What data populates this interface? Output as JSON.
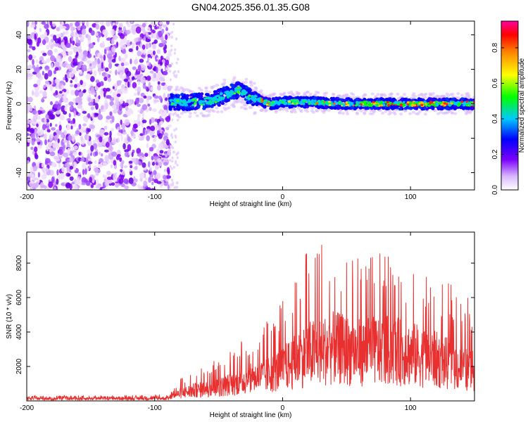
{
  "title": "GN04.2025.356.01.35.G08",
  "chart_data": [
    {
      "type": "heatmap",
      "xlabel": "Height of straight line (km)",
      "ylabel": "Frequency (Hz)",
      "xlim": [
        -200,
        150
      ],
      "ylim": [
        -50,
        48
      ],
      "xticks": [
        -200,
        -100,
        0,
        100
      ],
      "yticks": [
        -40,
        -20,
        0,
        20,
        40
      ],
      "colorbar": {
        "label": "Normalized spectral amplitude",
        "ticks": [
          0.0,
          0.2,
          0.4,
          0.6,
          0.8
        ],
        "range": [
          0,
          0.95
        ]
      },
      "noise_region_km": [
        -200,
        -88
      ],
      "ridge": [
        {
          "x": -88,
          "f": 1
        },
        {
          "x": -70,
          "f": 1
        },
        {
          "x": -55,
          "f": 2
        },
        {
          "x": -45,
          "f": 5
        },
        {
          "x": -35,
          "f": 8
        },
        {
          "x": -25,
          "f": 4
        },
        {
          "x": -10,
          "f": 0
        },
        {
          "x": 0,
          "f": 1
        },
        {
          "x": 20,
          "f": 1
        },
        {
          "x": 50,
          "f": 0
        },
        {
          "x": 80,
          "f": 0
        },
        {
          "x": 110,
          "f": 0
        },
        {
          "x": 150,
          "f": 0
        }
      ]
    },
    {
      "type": "line",
      "xlabel": "Height of straight line (km)",
      "ylabel": "SNR (10 * v/v)",
      "xlim": [
        -200,
        150
      ],
      "ylim": [
        0,
        9800
      ],
      "xticks": [
        -200,
        -100,
        0,
        100
      ],
      "yticks": [
        2000,
        4000,
        6000,
        8000
      ],
      "series": [
        {
          "name": "SNR",
          "color": "#e83030",
          "envelope": [
            {
              "x": -200,
              "mean": 150,
              "max": 300
            },
            {
              "x": -90,
              "mean": 180,
              "max": 350
            },
            {
              "x": -80,
              "mean": 500,
              "max": 1300
            },
            {
              "x": -70,
              "mean": 700,
              "max": 1800
            },
            {
              "x": -50,
              "mean": 900,
              "max": 2500
            },
            {
              "x": -30,
              "mean": 1400,
              "max": 3600
            },
            {
              "x": -10,
              "mean": 1800,
              "max": 4800
            },
            {
              "x": 0,
              "mean": 2200,
              "max": 5800
            },
            {
              "x": 20,
              "mean": 3200,
              "max": 9400
            },
            {
              "x": 40,
              "mean": 3600,
              "max": 9000
            },
            {
              "x": 60,
              "mean": 3300,
              "max": 8800
            },
            {
              "x": 80,
              "mean": 3500,
              "max": 8500
            },
            {
              "x": 100,
              "mean": 3200,
              "max": 7800
            },
            {
              "x": 120,
              "mean": 2800,
              "max": 7200
            },
            {
              "x": 140,
              "mean": 2200,
              "max": 6500
            },
            {
              "x": 150,
              "mean": 2000,
              "max": 5500
            }
          ]
        }
      ]
    }
  ]
}
